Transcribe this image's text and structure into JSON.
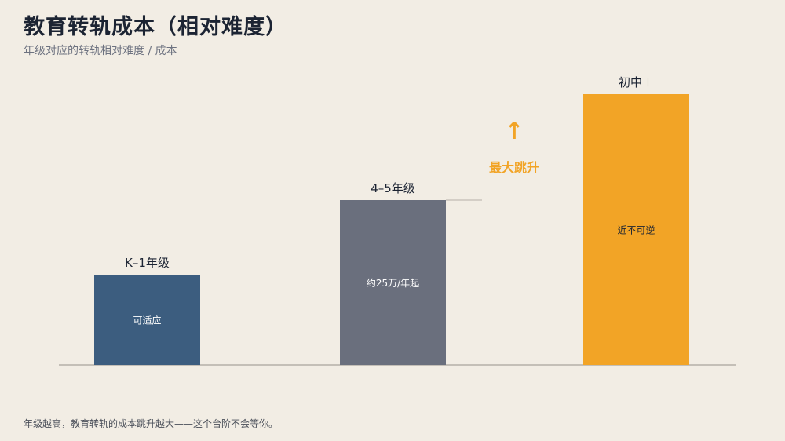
{
  "header": {
    "title": "教育转轨成本（相对难度）",
    "subtitle": "年级对应的转轨相对难度 / 成本"
  },
  "footer": {
    "note": "年级越高，教育转轨的成本跳升越大——这个台阶不会等你。"
  },
  "annotation": {
    "arrow_glyph": "↑",
    "label": "最大跳升",
    "color": "#f2a426"
  },
  "colors": {
    "background": "#f2ede4",
    "axis": "#b5b0a8"
  },
  "chart_data": {
    "type": "bar",
    "categories": [
      "K–1年级",
      "4–5年级",
      "初中＋"
    ],
    "values": [
      115,
      210,
      345
    ],
    "inside_labels": [
      "可适应",
      "约25万/年起",
      "近不可逆"
    ],
    "colors": [
      "#3c5d7f",
      "#6a6f7d",
      "#f2a426"
    ],
    "ylim": [
      0,
      400
    ],
    "grid": false,
    "title": "",
    "xlabel": "",
    "ylabel": ""
  }
}
